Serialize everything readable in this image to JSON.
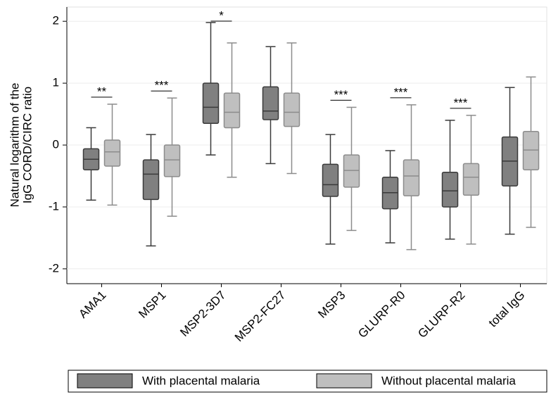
{
  "chart_data": {
    "type": "box",
    "ylabel": [
      "Natural logarithm of the",
      "IgG CORD/CIRC ratio"
    ],
    "categories": [
      "AMA1",
      "MSP1",
      "MSP2-3D7",
      "MSP2-FC27",
      "MSP3",
      "GLURP-R0",
      "GLURP-R2",
      "total IgG"
    ],
    "annotations": [
      "**",
      "***",
      "*",
      null,
      "***",
      "***",
      "***",
      null
    ],
    "series": [
      {
        "name": "With placental malaria",
        "color": "#808080",
        "edge": "#3a3a3a",
        "whisker_low": [
          -0.89,
          -1.63,
          -0.16,
          -0.3,
          -1.6,
          -1.58,
          -1.52,
          -1.44
        ],
        "q1": [
          -0.4,
          -0.88,
          0.35,
          0.41,
          -0.83,
          -1.03,
          -1.0,
          -0.66
        ],
        "median": [
          -0.23,
          -0.47,
          0.61,
          0.55,
          -0.64,
          -0.77,
          -0.74,
          -0.26
        ],
        "q3": [
          -0.06,
          -0.24,
          1.0,
          0.94,
          -0.31,
          -0.52,
          -0.44,
          0.13
        ],
        "whisker_high": [
          0.28,
          0.17,
          1.98,
          1.59,
          0.17,
          -0.09,
          0.4,
          0.93
        ]
      },
      {
        "name": "Without placental malaria",
        "color": "#bfbfbf",
        "edge": "#8c8c8c",
        "whisker_low": [
          -0.97,
          -1.15,
          -0.52,
          -0.46,
          -1.38,
          -1.69,
          -1.6,
          -1.33
        ],
        "q1": [
          -0.34,
          -0.51,
          0.28,
          0.3,
          -0.68,
          -0.82,
          -0.81,
          -0.4
        ],
        "median": [
          -0.11,
          -0.24,
          0.53,
          0.53,
          -0.41,
          -0.5,
          -0.52,
          -0.08
        ],
        "q3": [
          0.08,
          0.0,
          0.84,
          0.84,
          -0.16,
          -0.24,
          -0.3,
          0.22
        ],
        "whisker_high": [
          0.66,
          0.76,
          1.65,
          1.65,
          0.61,
          0.65,
          0.48,
          1.1
        ]
      }
    ],
    "ylim": [
      -2.24,
      2.23
    ],
    "yticks": [
      2,
      1,
      0,
      -1,
      -2
    ],
    "grid": true
  }
}
